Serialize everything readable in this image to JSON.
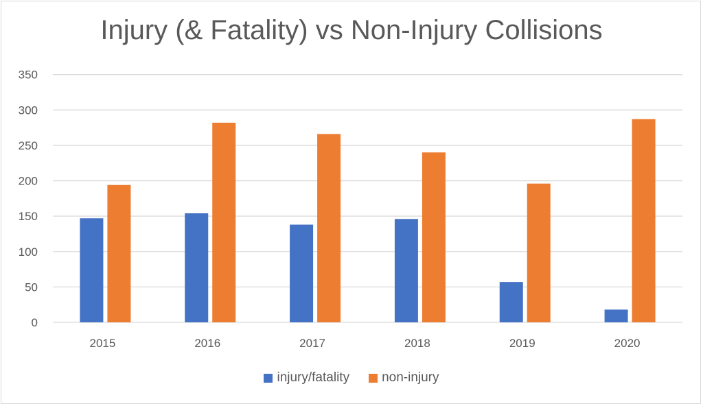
{
  "chart_data": {
    "type": "bar",
    "title": "Injury (& Fatality) vs Non-Injury Collisions",
    "xlabel": "",
    "ylabel": "",
    "categories": [
      "2015",
      "2016",
      "2017",
      "2018",
      "2019",
      "2020"
    ],
    "series": [
      {
        "name": "injury/fatality",
        "color": "#4472c4",
        "values": [
          147,
          154,
          138,
          146,
          57,
          18
        ]
      },
      {
        "name": "non-injury",
        "color": "#ed7d31",
        "values": [
          194,
          282,
          266,
          240,
          196,
          287
        ]
      }
    ],
    "ylim": [
      0,
      350
    ],
    "yticks": [
      "0",
      "50",
      "100",
      "150",
      "200",
      "250",
      "300",
      "350"
    ],
    "grid": true,
    "legend": "bottom"
  }
}
